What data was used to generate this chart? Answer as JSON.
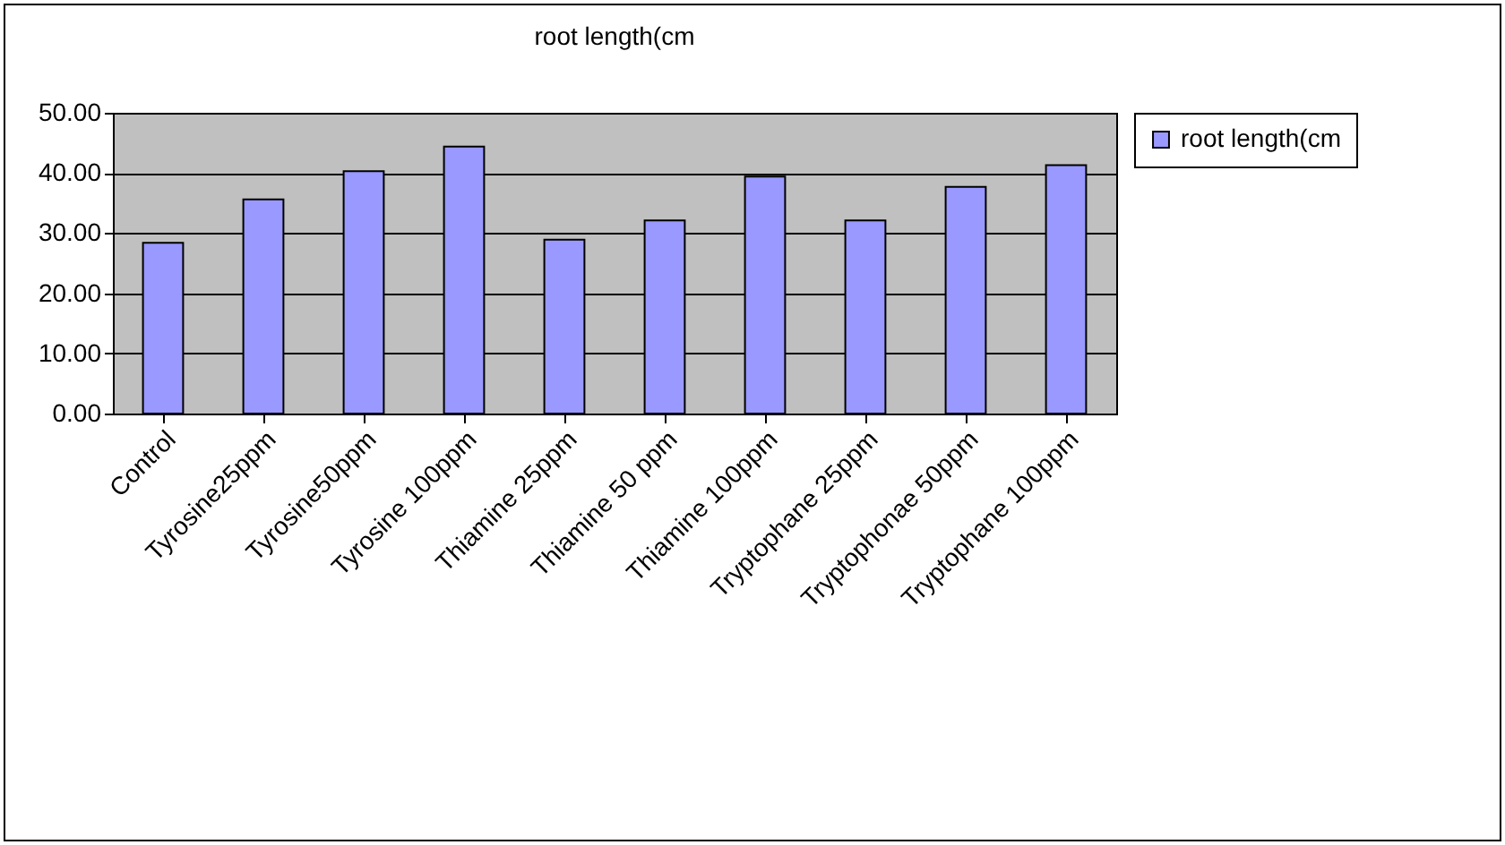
{
  "chart_data": {
    "type": "bar",
    "title": "root length(cm",
    "categories": [
      "Control",
      "Tyrosine25ppm",
      "Tyrosine50ppm",
      "Tyrosine 100ppm",
      "Thiamine 25ppm",
      "Thiamine 50 ppm",
      "Thiamine 100ppm",
      "Tryptophane 25ppm",
      "Tryptophonae 50ppm",
      "Tryptophane 100ppm"
    ],
    "series": [
      {
        "name": "root length(cm",
        "color": "#9999ff",
        "values": [
          28.4,
          35.6,
          40.3,
          44.4,
          28.9,
          32.1,
          39.4,
          32.1,
          37.7,
          41.3
        ]
      }
    ],
    "ylim": [
      0,
      50
    ],
    "yticks": [
      {
        "value": 0,
        "label": "0.00"
      },
      {
        "value": 10,
        "label": "10.00"
      },
      {
        "value": 20,
        "label": "20.00"
      },
      {
        "value": 30,
        "label": "30.00"
      },
      {
        "value": 40,
        "label": "40.00"
      },
      {
        "value": 50,
        "label": "50.00"
      }
    ],
    "grid": "y",
    "legend": "right"
  }
}
